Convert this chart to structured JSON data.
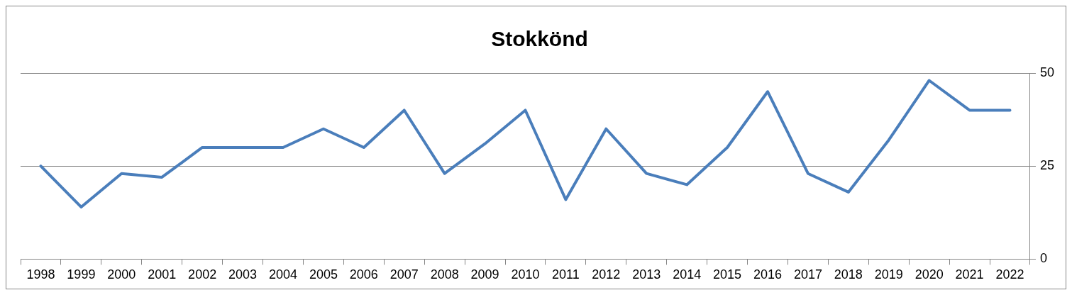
{
  "chart_data": {
    "type": "line",
    "title": "Stokkönd",
    "categories": [
      "1998",
      "1999",
      "2000",
      "2001",
      "2002",
      "2003",
      "2004",
      "2005",
      "2006",
      "2007",
      "2008",
      "2009",
      "2010",
      "2011",
      "2012",
      "2013",
      "2014",
      "2015",
      "2016",
      "2017",
      "2018",
      "2019",
      "2020",
      "2021",
      "2022"
    ],
    "series": [
      {
        "color": "#4a7ebb",
        "values": [
          25,
          14,
          23,
          22,
          30,
          30,
          30,
          35,
          30,
          40,
          23,
          31,
          40,
          16,
          35,
          23,
          20,
          30,
          45,
          23,
          18,
          32,
          48,
          40,
          40
        ]
      }
    ],
    "ylim": [
      0,
      50
    ],
    "yticks": [
      0,
      25,
      50
    ],
    "grid": "y",
    "legend": false,
    "marker": "none",
    "line_style": "solid"
  }
}
